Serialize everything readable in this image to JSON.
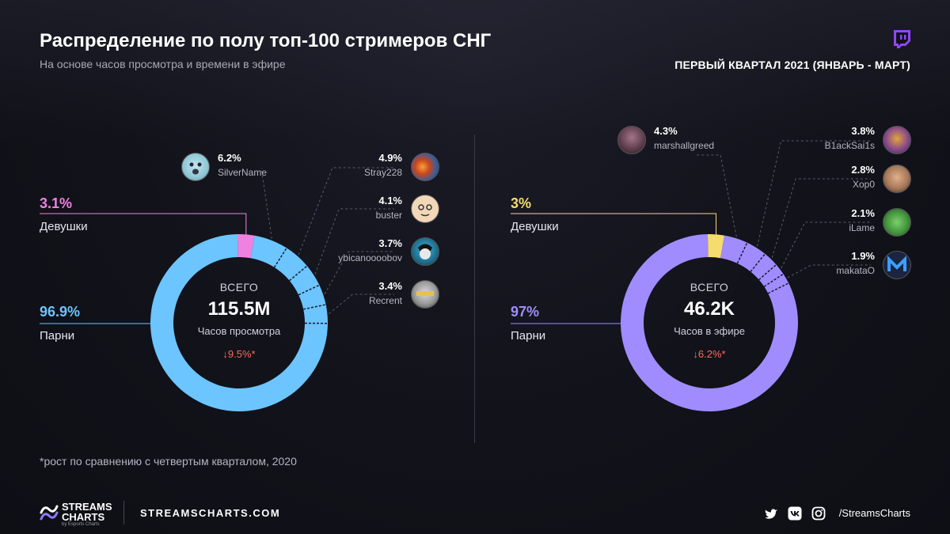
{
  "header": {
    "title": "Распределение по полу топ-100 стримеров СНГ",
    "subtitle": "На основе часов просмотра и времени в эфире",
    "period": "ПЕРВЫЙ КВАРТАЛ 2021 (ЯНВАРЬ - МАРТ)"
  },
  "colors": {
    "girls_left": "#ee82e0",
    "boys_left": "#6cc5ff",
    "girls_right": "#f5dc6e",
    "boys_right": "#a08cff",
    "change_negative": "#ff6a5a"
  },
  "chart_data": [
    {
      "type": "pie",
      "donut": true,
      "series": [
        {
          "name": "Девушки",
          "label": "3.1%",
          "value": 3.1
        },
        {
          "name": "Парни",
          "label": "96.9%",
          "value": 96.9
        }
      ],
      "center": {
        "heading": "ВСЕГО",
        "total": "115.5M",
        "unit": "Часов просмотра",
        "change": "9.5%*"
      },
      "top_streamers": [
        {
          "name": "SilverName",
          "label": "6.2%",
          "value": 6.2,
          "icon": "avatar-silvername"
        },
        {
          "name": "Stray228",
          "label": "4.9%",
          "value": 4.9,
          "icon": "avatar-stray228"
        },
        {
          "name": "buster",
          "label": "4.1%",
          "value": 4.1,
          "icon": "avatar-buster"
        },
        {
          "name": "ybicanoooobov",
          "label": "3.7%",
          "value": 3.7,
          "icon": "avatar-ybicanoooobov"
        },
        {
          "name": "Recrent",
          "label": "3.4%",
          "value": 3.4,
          "icon": "avatar-recrent"
        }
      ]
    },
    {
      "type": "pie",
      "donut": true,
      "series": [
        {
          "name": "Девушки",
          "label": "3%",
          "value": 3.0
        },
        {
          "name": "Парни",
          "label": "97%",
          "value": 97.0
        }
      ],
      "center": {
        "heading": "ВСЕГО",
        "total": "46.2K",
        "unit": "Часов в эфире",
        "change": "6.2%*"
      },
      "top_streamers": [
        {
          "name": "marshallgreed",
          "label": "4.3%",
          "value": 4.3,
          "icon": "avatar-marshallgreed"
        },
        {
          "name": "B1ackSai1s",
          "label": "3.8%",
          "value": 3.8,
          "icon": "avatar-b1acksai1s"
        },
        {
          "name": "Xop0",
          "label": "2.8%",
          "value": 2.8,
          "icon": "avatar-xop0"
        },
        {
          "name": "iLame",
          "label": "2.1%",
          "value": 2.1,
          "icon": "avatar-ilame"
        },
        {
          "name": "makataO",
          "label": "1.9%",
          "value": 1.9,
          "icon": "avatar-makatao"
        }
      ]
    }
  ],
  "footnote": "*рост по сравнению с четвертым кварталом, 2020",
  "footer": {
    "brand_line1": "STREAMS",
    "brand_line2": "CHARTS",
    "brand_sub": "by Esports Charts",
    "site": "STREAMSCHARTS.COM",
    "handle": "/StreamsCharts",
    "social_icons": [
      "twitter-icon",
      "vk-icon",
      "instagram-icon"
    ]
  }
}
